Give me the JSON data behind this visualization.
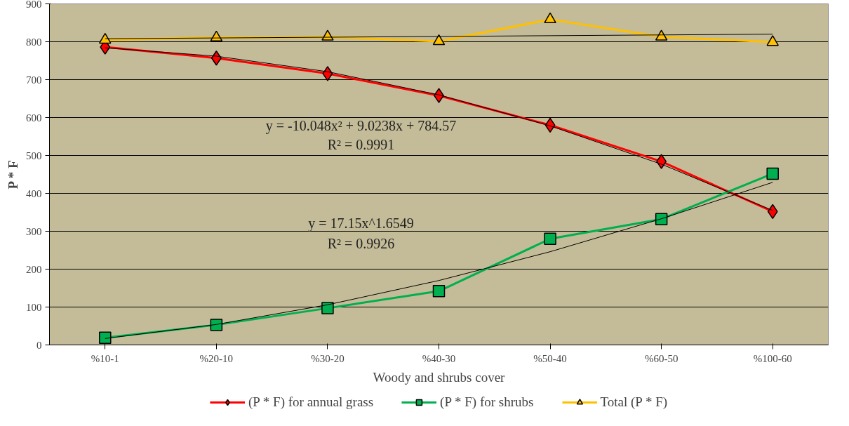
{
  "chart_data": {
    "type": "line",
    "xlabel": "Woody and shrubs cover",
    "ylabel": "P * F",
    "categories": [
      "%10-1",
      "%20-10",
      "%30-20",
      "%40-30",
      "%50-40",
      "%60-50",
      "%100-60"
    ],
    "series": [
      {
        "name": "(P * F) for annual grass",
        "color": "#ff0000",
        "marker": "diamond",
        "values": [
          786,
          757,
          716,
          658,
          580,
          484,
          352
        ]
      },
      {
        "name": "(P * F) for shrubs",
        "color": "#00b050",
        "marker": "square",
        "values": [
          19,
          53,
          97,
          142,
          280,
          332,
          452
        ]
      },
      {
        "name": "Total (P * F)",
        "color": "#ffc000",
        "marker": "triangle",
        "values": [
          805,
          811,
          813,
          801,
          859,
          813,
          799
        ]
      },
      {
        "color": "#000000",
        "marker": "none",
        "values": [
          784,
          762,
          721,
          660,
          578,
          477,
          355
        ]
      },
      {
        "color": "#000000",
        "marker": "none",
        "values": [
          17,
          54,
          106,
          170,
          246,
          333,
          429
        ]
      },
      {
        "color": "#000000",
        "marker": "none",
        "values": [
          808,
          810,
          812,
          814,
          816,
          818,
          820
        ]
      }
    ],
    "ylim": [
      0,
      900
    ],
    "yticks": [
      0,
      100,
      200,
      300,
      400,
      500,
      600,
      700,
      800,
      900
    ],
    "grid": "y",
    "legend": "bottom",
    "annotations": [
      "y = -10.048x² + 9.0238x + 784.57",
      "R² = 0.9991",
      "y = 17.15x^1.6549",
      "R² = 0.9926"
    ]
  }
}
